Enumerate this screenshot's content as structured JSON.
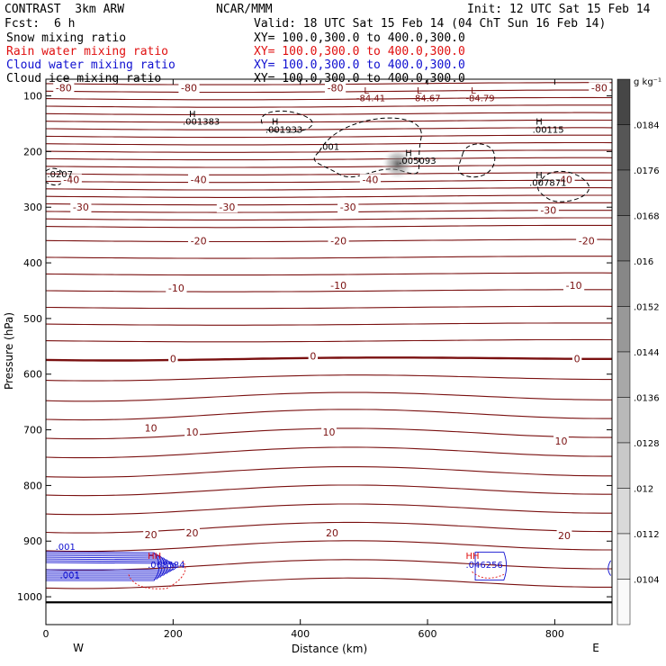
{
  "header": {
    "model": "CONTRAST  3km ARW",
    "org": "NCAR/MMM",
    "init": "Init: 12 UTC Sat 15 Feb 14",
    "fcst_label": "Fcst:",
    "fcst_value": "6 h",
    "valid": "Valid: 18 UTC Sat 15 Feb 14 (04 ChT Sun 16 Feb 14)"
  },
  "fields": [
    {
      "label": "Snow mixing ratio",
      "xy": "XY= 100.0,300.0 to 400.0,300.0",
      "color": "#000000"
    },
    {
      "label": "Rain water mixing ratio",
      "xy": "XY= 100.0,300.0 to 400.0,300.0",
      "color": "#e01010"
    },
    {
      "label": "Cloud water mixing ratio",
      "xy": "XY= 100.0,300.0 to 400.0,300.0",
      "color": "#1010d0"
    },
    {
      "label": "Cloud ice mixing ratio",
      "xy": "XY= 100.0,300.0 to 400.0,300.0",
      "color": "#000000"
    }
  ],
  "colorbar": {
    "unit": "g kg⁻¹",
    "labels": [
      ".0184",
      ".0176",
      ".0168",
      ".016",
      ".0152",
      ".0144",
      ".0136",
      ".0128",
      ".012",
      ".0112",
      ".0104"
    ]
  },
  "chart_data": {
    "type": "contour-cross-section",
    "xlabel": "Distance (km)",
    "ylabel": "Pressure (hPa)",
    "xlim": [
      0,
      890
    ],
    "ylim": [
      1050,
      70
    ],
    "x_ticks": [
      0,
      200,
      400,
      600,
      800
    ],
    "y_ticks": [
      100,
      200,
      300,
      400,
      500,
      600,
      700,
      800,
      900,
      1000
    ],
    "x_end_labels": {
      "left": "W",
      "right": "E"
    },
    "temperature_contour_color": "#7a1010",
    "temperature_labels": [
      {
        "text": "-80",
        "x": 28,
        "p": 85
      },
      {
        "text": "-80",
        "x": 225,
        "p": 85
      },
      {
        "text": "-80",
        "x": 455,
        "p": 85
      },
      {
        "text": "-80",
        "x": 870,
        "p": 85
      },
      {
        "text": "-40",
        "x": 40,
        "p": 250
      },
      {
        "text": "-40",
        "x": 240,
        "p": 250
      },
      {
        "text": "-40",
        "x": 510,
        "p": 250
      },
      {
        "text": "-40",
        "x": 815,
        "p": 250
      },
      {
        "text": "-30",
        "x": 55,
        "p": 300
      },
      {
        "text": "-30",
        "x": 285,
        "p": 300
      },
      {
        "text": "-30",
        "x": 475,
        "p": 300
      },
      {
        "text": "-30",
        "x": 790,
        "p": 305
      },
      {
        "text": "-20",
        "x": 240,
        "p": 360
      },
      {
        "text": "-20",
        "x": 460,
        "p": 360
      },
      {
        "text": "-20",
        "x": 850,
        "p": 360
      },
      {
        "text": "-10",
        "x": 205,
        "p": 445
      },
      {
        "text": "-10",
        "x": 460,
        "p": 440
      },
      {
        "text": "-10",
        "x": 830,
        "p": 440
      },
      {
        "text": "0",
        "x": 200,
        "p": 572
      },
      {
        "text": "0",
        "x": 420,
        "p": 567
      },
      {
        "text": "0",
        "x": 835,
        "p": 572
      },
      {
        "text": "10",
        "x": 165,
        "p": 697
      },
      {
        "text": "10",
        "x": 230,
        "p": 704
      },
      {
        "text": "10",
        "x": 445,
        "p": 704
      },
      {
        "text": "10",
        "x": 810,
        "p": 720
      },
      {
        "text": "20",
        "x": 165,
        "p": 888
      },
      {
        "text": "20",
        "x": 230,
        "p": 885
      },
      {
        "text": "20",
        "x": 450,
        "p": 885
      },
      {
        "text": "20",
        "x": 815,
        "p": 890
      }
    ],
    "annotations": [
      {
        "text": "H",
        "x": 225,
        "p": 138,
        "color": "#000000"
      },
      {
        "text": ".001383",
        "x": 215,
        "p": 152,
        "color": "#000000"
      },
      {
        "text": "H",
        "x": 355,
        "p": 152,
        "color": "#000000"
      },
      {
        "text": ".001933",
        "x": 345,
        "p": 166,
        "color": "#000000"
      },
      {
        "text": "L",
        "x": 500,
        "p": 96,
        "color": "#7a1010"
      },
      {
        "text": "L",
        "x": 583,
        "p": 96,
        "color": "#7a1010"
      },
      {
        "text": "L",
        "x": 668,
        "p": 96,
        "color": "#7a1010"
      },
      {
        "text": "-84.41",
        "x": 488,
        "p": 110,
        "color": "#7a1010"
      },
      {
        "text": "-84.67",
        "x": 575,
        "p": 110,
        "color": "#7a1010"
      },
      {
        "text": "-84.79",
        "x": 660,
        "p": 110,
        "color": "#7a1010"
      },
      {
        "text": "H",
        "x": 770,
        "p": 152,
        "color": "#000000"
      },
      {
        "text": ".00115",
        "x": 765,
        "p": 166,
        "color": "#000000"
      },
      {
        "text": ".001",
        "x": 430,
        "p": 197,
        "color": "#000000"
      },
      {
        "text": "H",
        "x": 565,
        "p": 208,
        "color": "#000000"
      },
      {
        "text": ".005093",
        "x": 555,
        "p": 222,
        "color": "#000000"
      },
      {
        "text": ".0207",
        "x": 2,
        "p": 246,
        "color": "#000000"
      },
      {
        "text": "H",
        "x": 770,
        "p": 248,
        "color": "#000000"
      },
      {
        "text": ".007871",
        "x": 760,
        "p": 262,
        "color": "#000000"
      },
      {
        "text": ".001",
        "x": 15,
        "p": 916,
        "color": "#1010d0"
      },
      {
        "text": ".001",
        "x": 22,
        "p": 967,
        "color": "#1010d0"
      },
      {
        "text": "HH",
        "x": 160,
        "p": 932,
        "color": "#e01010"
      },
      {
        "text": ".068584",
        "x": 160,
        "p": 948,
        "color": "#1010d0"
      },
      {
        "text": "HH",
        "x": 660,
        "p": 932,
        "color": "#e01010"
      },
      {
        "text": ".046256",
        "x": 660,
        "p": 948,
        "color": "#1010d0"
      }
    ]
  }
}
